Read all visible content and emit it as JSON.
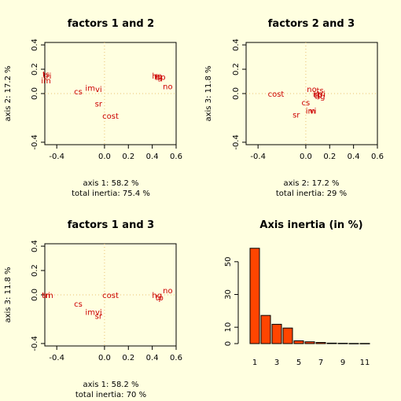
{
  "chart_data": [
    {
      "type": "scatter",
      "title": "factors 1 and 2",
      "xlabel": "axis 1: 58.2 %",
      "subtitle": "total inertia: 75.4 %",
      "ylabel": "axis 2: 17.2 %",
      "xlim": [
        -0.5,
        0.6
      ],
      "ylim": [
        -0.42,
        0.42
      ],
      "xticks": [
        {
          "v": -0.4,
          "t": "-0.4"
        },
        {
          "v": 0.0,
          "t": "0.0"
        },
        {
          "v": 0.2,
          "t": "0.2"
        },
        {
          "v": 0.4,
          "t": "0.4"
        },
        {
          "v": 0.6,
          "t": "0.6"
        }
      ],
      "yticks": [
        {
          "v": -0.4,
          "t": "-0.4"
        },
        {
          "v": 0.0,
          "t": "0.0"
        },
        {
          "v": 0.2,
          "t": "0.2"
        },
        {
          "v": 0.4,
          "t": "0.4"
        }
      ],
      "points": [
        {
          "label": "ts",
          "x": -0.49,
          "y": 0.16
        },
        {
          "label": "tri",
          "x": -0.48,
          "y": 0.15
        },
        {
          "label": "im",
          "x": -0.49,
          "y": 0.11
        },
        {
          "label": "cs",
          "x": -0.22,
          "y": 0.02
        },
        {
          "label": "im",
          "x": -0.12,
          "y": 0.05
        },
        {
          "label": "vi",
          "x": -0.05,
          "y": 0.04
        },
        {
          "label": "sr",
          "x": -0.05,
          "y": -0.08
        },
        {
          "label": "cost",
          "x": 0.05,
          "y": -0.18
        },
        {
          "label": "hp",
          "x": 0.44,
          "y": 0.15
        },
        {
          "label": "tg",
          "x": 0.45,
          "y": 0.14
        },
        {
          "label": "hp",
          "x": 0.47,
          "y": 0.14
        },
        {
          "label": "no",
          "x": 0.53,
          "y": 0.06
        }
      ]
    },
    {
      "type": "scatter",
      "title": "factors 2 and 3",
      "xlabel": "axis 2: 17.2 %",
      "subtitle": "total inertia: 29 %",
      "ylabel": "axis 3: 11.8 %",
      "xlim": [
        -0.5,
        0.6
      ],
      "ylim": [
        -0.42,
        0.42
      ],
      "xticks": [
        {
          "v": -0.4,
          "t": "-0.4"
        },
        {
          "v": 0.0,
          "t": "0.0"
        },
        {
          "v": 0.2,
          "t": "0.2"
        },
        {
          "v": 0.4,
          "t": "0.4"
        },
        {
          "v": 0.6,
          "t": "0.6"
        }
      ],
      "yticks": [
        {
          "v": -0.4,
          "t": "-0.4"
        },
        {
          "v": 0.0,
          "t": "0.0"
        },
        {
          "v": 0.2,
          "t": "0.2"
        },
        {
          "v": 0.4,
          "t": "0.4"
        }
      ],
      "points": [
        {
          "label": "cost",
          "x": -0.25,
          "y": 0.0
        },
        {
          "label": "no",
          "x": 0.05,
          "y": 0.04
        },
        {
          "label": "cs",
          "x": 0.0,
          "y": -0.07
        },
        {
          "label": "sr",
          "x": -0.08,
          "y": -0.17
        },
        {
          "label": "vi",
          "x": 0.06,
          "y": -0.14
        },
        {
          "label": "im",
          "x": 0.04,
          "y": -0.14
        },
        {
          "label": "ts",
          "x": 0.12,
          "y": 0.03
        },
        {
          "label": "tri",
          "x": 0.13,
          "y": 0.0
        },
        {
          "label": "tp",
          "x": 0.1,
          "y": -0.01
        },
        {
          "label": "hg",
          "x": 0.12,
          "y": -0.02
        },
        {
          "label": "im",
          "x": 0.1,
          "y": 0.0
        }
      ]
    },
    {
      "type": "scatter",
      "title": "factors 1 and 3",
      "xlabel": "axis 1: 58.2 %",
      "subtitle": "total inertia: 70 %",
      "ylabel": "axis 3: 11.8 %",
      "xlim": [
        -0.5,
        0.6
      ],
      "ylim": [
        -0.42,
        0.42
      ],
      "xticks": [
        {
          "v": -0.4,
          "t": "-0.4"
        },
        {
          "v": 0.0,
          "t": "0.0"
        },
        {
          "v": 0.2,
          "t": "0.2"
        },
        {
          "v": 0.4,
          "t": "0.4"
        },
        {
          "v": 0.6,
          "t": "0.6"
        }
      ],
      "yticks": [
        {
          "v": -0.4,
          "t": "-0.4"
        },
        {
          "v": 0.0,
          "t": "0.0"
        },
        {
          "v": 0.2,
          "t": "0.2"
        },
        {
          "v": 0.4,
          "t": "0.4"
        }
      ],
      "points": [
        {
          "label": "tri",
          "x": -0.49,
          "y": 0.0
        },
        {
          "label": "im",
          "x": -0.47,
          "y": 0.0
        },
        {
          "label": "cs",
          "x": -0.22,
          "y": -0.07
        },
        {
          "label": "cost",
          "x": 0.05,
          "y": 0.0
        },
        {
          "label": "im",
          "x": -0.12,
          "y": -0.14
        },
        {
          "label": "vi",
          "x": -0.05,
          "y": -0.14
        },
        {
          "label": "sr",
          "x": -0.05,
          "y": -0.17
        },
        {
          "label": "hg",
          "x": 0.44,
          "y": 0.0
        },
        {
          "label": "tp",
          "x": 0.46,
          "y": -0.02
        },
        {
          "label": "no",
          "x": 0.53,
          "y": 0.04
        }
      ]
    },
    {
      "type": "bar",
      "title": "Axis inertia (in %)",
      "categories": [
        "1",
        "2",
        "3",
        "4",
        "5",
        "6",
        "7",
        "8",
        "9",
        "10",
        "11"
      ],
      "xticks": [
        "1",
        "3",
        "5",
        "7",
        "9",
        "11"
      ],
      "values": [
        58.2,
        17.2,
        11.8,
        9.5,
        1.7,
        1.1,
        0.7,
        0.3,
        0.2,
        0.1,
        0.1
      ],
      "ylim": [
        0,
        60
      ],
      "yticks": [
        0,
        10,
        30,
        50
      ],
      "bar_color": "#ff4500"
    }
  ]
}
